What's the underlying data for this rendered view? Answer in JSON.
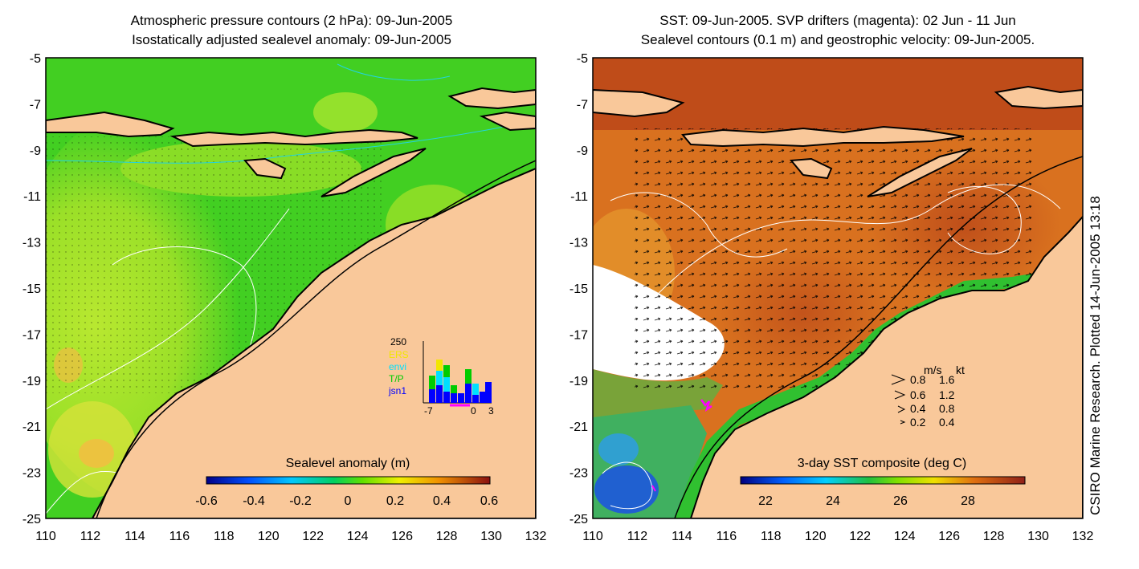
{
  "left_panel": {
    "title_line1": "Atmospheric pressure contours (2 hPa): 09-Jun-2005",
    "title_line2": "Isostatically adjusted sealevel anomaly: 09-Jun-2005",
    "colorbar": {
      "title": "Sealevel anomaly (m)",
      "ticks": [
        "-0.6",
        "-0.4",
        "-0.2",
        "0",
        "0.2",
        "0.4",
        "0.6"
      ]
    },
    "inset": {
      "ymax_label": "250",
      "series": [
        "ERS",
        "envi",
        "T/P",
        "jsn1"
      ],
      "series_colors": [
        "#f2e600",
        "#00e0ff",
        "#00cc00",
        "#0000ff"
      ],
      "x_ticks": [
        "-7",
        "0",
        "3"
      ]
    }
  },
  "right_panel": {
    "title_line1": "SST: 09-Jun-2005. SVP drifters (magenta): 02 Jun - 11 Jun",
    "title_line2": "Sealevel contours (0.1 m) and geostrophic velocity: 09-Jun-2005.",
    "colorbar": {
      "title": "3-day SST composite (deg C)",
      "ticks": [
        "22",
        "24",
        "26",
        "28"
      ]
    },
    "velocity_legend": {
      "header_ms": "m/s",
      "header_kt": "kt",
      "rows": [
        {
          "ms": "0.8",
          "kt": "1.6"
        },
        {
          "ms": "0.6",
          "kt": "1.2"
        },
        {
          "ms": "0.4",
          "kt": "0.8"
        },
        {
          "ms": "0.2",
          "kt": "0.4"
        }
      ]
    }
  },
  "axes": {
    "y_labels": [
      "-5",
      "-7",
      "-9",
      "-11",
      "-13",
      "-15",
      "-17",
      "-19",
      "-21",
      "-23",
      "-25"
    ],
    "x_labels": [
      "110",
      "112",
      "114",
      "116",
      "118",
      "120",
      "122",
      "124",
      "126",
      "128",
      "130",
      "132"
    ]
  },
  "credit": "CSIRO Marine Research. Plotted 14-Jun-2005 13:18",
  "colors": {
    "land": "#f9c89a",
    "ocean_left": "#3fcf1f",
    "ocean_left_light": "#8ee41e",
    "ocean_right": "#d9701f",
    "ocean_right_dark": "#b8441a",
    "coast": "#000000",
    "drifter": "#ff00ff"
  }
}
